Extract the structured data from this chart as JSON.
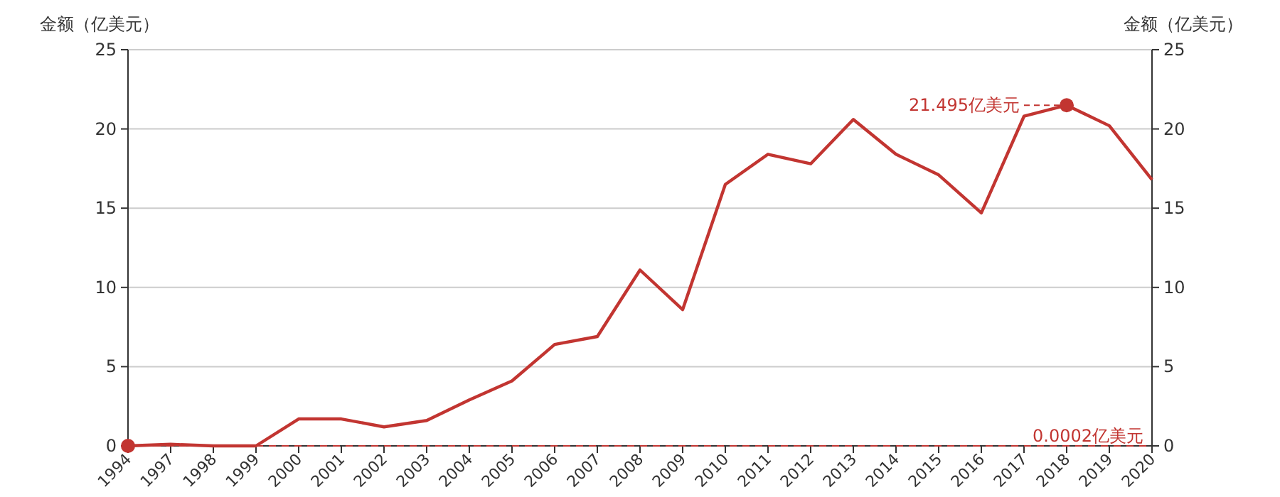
{
  "chart_data": {
    "type": "line",
    "ylabel": "金额（亿美元）",
    "y2label": "金额（亿美元）",
    "categories": [
      "1994",
      "1997",
      "1998",
      "1999",
      "2000",
      "2001",
      "2002",
      "2003",
      "2004",
      "2005",
      "2006",
      "2007",
      "2008",
      "2009",
      "2010",
      "2011",
      "2012",
      "2013",
      "2014",
      "2015",
      "2016",
      "2017",
      "2018",
      "2019",
      "2020"
    ],
    "series": [
      {
        "color": "#c23531",
        "values": [
          0.0002,
          0.1,
          0.0,
          0.0,
          1.7,
          1.7,
          1.2,
          1.6,
          2.9,
          4.1,
          6.4,
          6.9,
          11.1,
          8.6,
          16.5,
          18.4,
          17.8,
          20.6,
          18.4,
          17.1,
          14.7,
          20.8,
          21.495,
          20.2,
          16.8
        ]
      }
    ],
    "ylim": [
      0,
      25
    ],
    "yticks": [
      0,
      5,
      10,
      15,
      20,
      25
    ],
    "y2lim": [
      0,
      25
    ],
    "y2ticks": [
      0,
      5,
      10,
      15,
      20,
      25
    ],
    "grid": "y",
    "marker": "none",
    "line_style": "solid",
    "annotations": [
      {
        "text": "21.495亿美元",
        "x": "2018",
        "y": 21.495
      }
    ],
    "ref_lines": [
      {
        "axis": "y",
        "value": 0.0002,
        "label": "0.0002亿美元",
        "color": "#c23531",
        "line_style": "dashed"
      }
    ]
  }
}
